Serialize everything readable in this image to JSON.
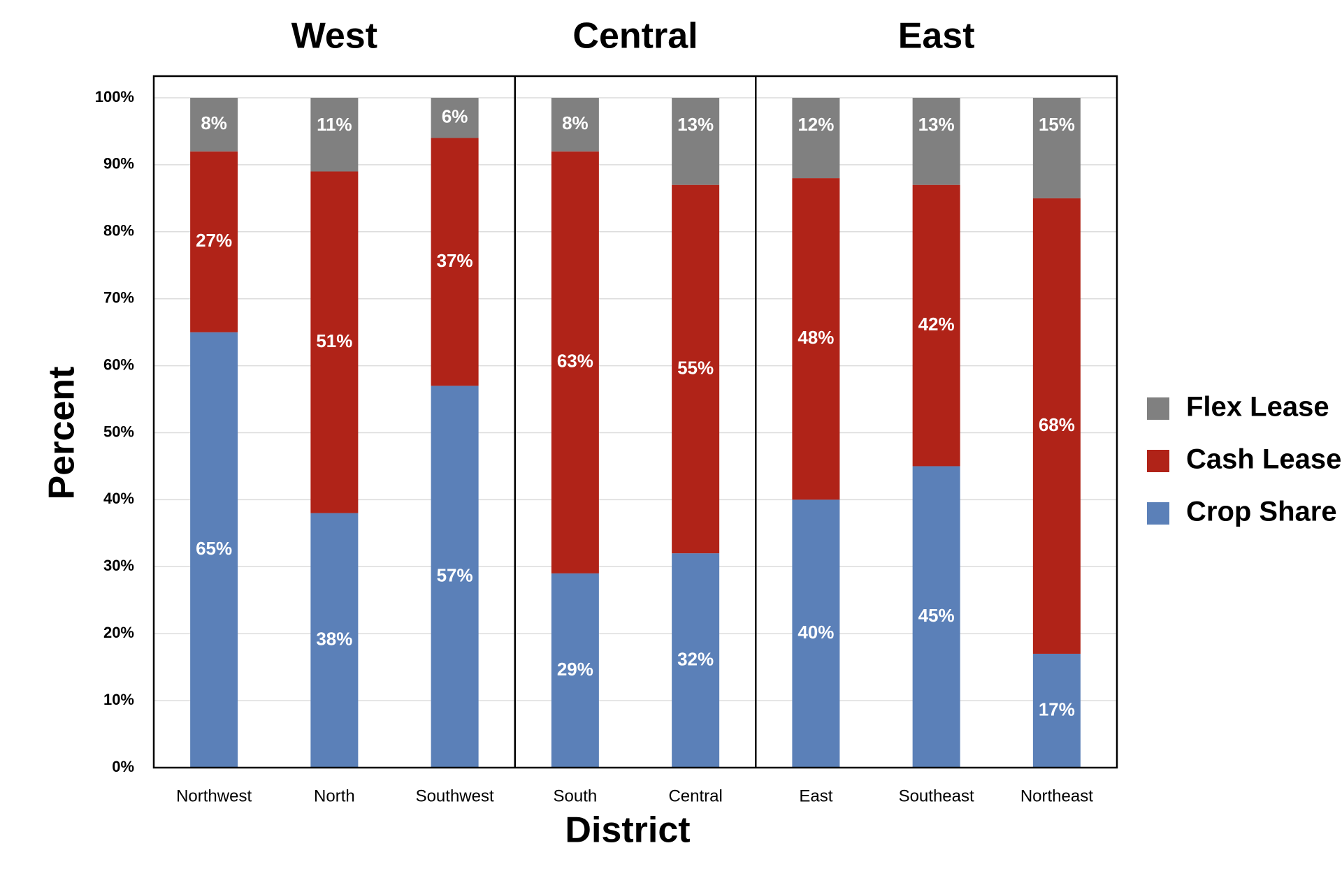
{
  "chart_data": {
    "type": "stacked-bar",
    "x_label": "District",
    "y_label": "Percent",
    "groups": [
      {
        "name": "West",
        "categories": [
          "Northwest",
          "North",
          "Southwest"
        ]
      },
      {
        "name": "Central",
        "categories": [
          "South",
          "Central"
        ]
      },
      {
        "name": "East",
        "categories": [
          "East",
          "Southeast",
          "Northeast"
        ]
      }
    ],
    "series": [
      {
        "name": "Crop Share",
        "color": "#5b80b8",
        "values": [
          65,
          38,
          57,
          29,
          32,
          40,
          45,
          17
        ],
        "value_labels": [
          "65%",
          "38%",
          "57%",
          "29%",
          "32%",
          "40%",
          "45%",
          "17%"
        ]
      },
      {
        "name": "Cash Lease",
        "color": "#b02318",
        "values": [
          27,
          51,
          37,
          63,
          55,
          48,
          42,
          68
        ],
        "value_labels": [
          "27%",
          "51%",
          "37%",
          "63%",
          "55%",
          "48%",
          "42%",
          "68%"
        ]
      },
      {
        "name": "Flex Lease",
        "color": "#808080",
        "values": [
          8,
          11,
          6,
          8,
          13,
          12,
          13,
          15
        ],
        "value_labels": [
          "8%",
          "11%",
          "6%",
          "8%",
          "13%",
          "12%",
          "13%",
          "15%"
        ]
      }
    ],
    "ylim": [
      0,
      100
    ],
    "yticks": [
      {
        "value": 0,
        "label": "0%"
      },
      {
        "value": 10,
        "label": "10%"
      },
      {
        "value": 20,
        "label": "20%"
      },
      {
        "value": 30,
        "label": "30%"
      },
      {
        "value": 40,
        "label": "40%"
      },
      {
        "value": 50,
        "label": "50%"
      },
      {
        "value": 60,
        "label": "60%"
      },
      {
        "value": 70,
        "label": "70%"
      },
      {
        "value": 80,
        "label": "80%"
      },
      {
        "value": 90,
        "label": "90%"
      },
      {
        "value": 100,
        "label": "100%"
      }
    ],
    "grid": true,
    "legend": "right"
  }
}
